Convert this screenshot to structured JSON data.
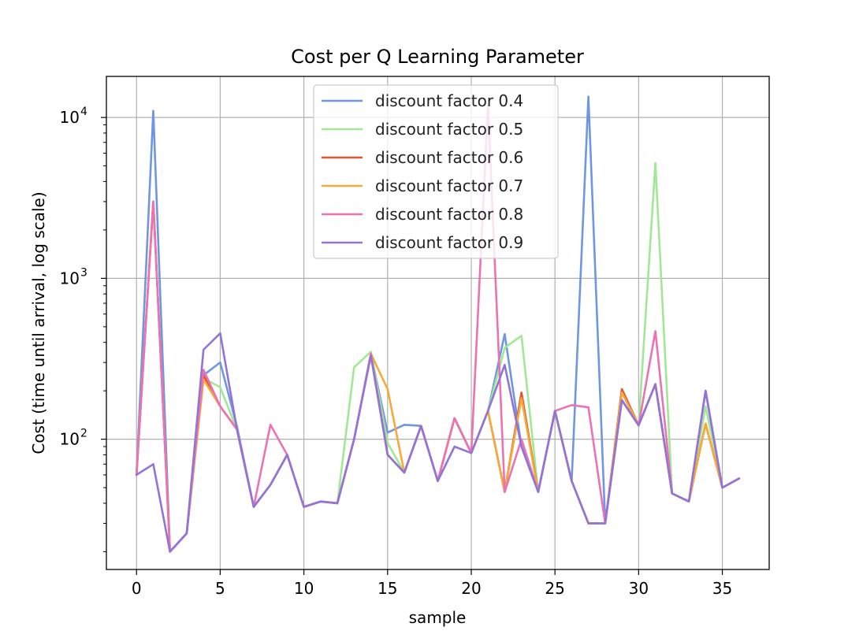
{
  "chart_data": {
    "type": "line",
    "title": "Cost per Q Learning Parameter",
    "xlabel": "sample",
    "ylabel": "Cost (time until arrival, log scale)",
    "yscale": "log",
    "xlim": [
      -1.8,
      37.8
    ],
    "ylim": [
      15.5,
      18000
    ],
    "xticks": [
      0,
      5,
      10,
      15,
      20,
      25,
      30,
      35
    ],
    "yticks": [
      {
        "value": 100,
        "base": "10",
        "exp": "2"
      },
      {
        "value": 1000,
        "base": "10",
        "exp": "3"
      },
      {
        "value": 10000,
        "base": "10",
        "exp": "4"
      }
    ],
    "grid": true,
    "legend_position": "upper center",
    "x": [
      0,
      1,
      2,
      3,
      4,
      5,
      6,
      7,
      8,
      9,
      10,
      11,
      12,
      13,
      14,
      15,
      16,
      17,
      18,
      19,
      20,
      21,
      22,
      23,
      24,
      25,
      26,
      27,
      28,
      29,
      30,
      31,
      32,
      33,
      34,
      35,
      36
    ],
    "series": [
      {
        "name": "discount factor 0.4",
        "color": "#6f96e6",
        "values": [
          60,
          11000,
          20,
          26,
          250,
          300,
          120,
          38,
          52,
          80,
          38,
          41,
          40,
          100,
          340,
          110,
          123,
          121,
          55,
          135,
          82,
          150,
          450,
          90,
          47,
          150,
          55,
          13500,
          30,
          175,
          122,
          220,
          46,
          41,
          200,
          50,
          57
        ]
      },
      {
        "name": "discount factor 0.5",
        "color": "#a0e896",
        "values": [
          60,
          3000,
          20,
          26,
          240,
          210,
          115,
          38,
          52,
          80,
          38,
          41,
          40,
          280,
          350,
          95,
          62,
          121,
          55,
          135,
          82,
          150,
          370,
          440,
          47,
          150,
          55,
          30,
          30,
          175,
          122,
          5200,
          46,
          41,
          160,
          50,
          57
        ]
      },
      {
        "name": "discount factor 0.6",
        "color": "#e5552c",
        "values": [
          60,
          3000,
          20,
          26,
          250,
          160,
          115,
          38,
          52,
          80,
          38,
          41,
          40,
          100,
          340,
          80,
          62,
          121,
          55,
          135,
          82,
          150,
          47,
          195,
          47,
          150,
          55,
          30,
          30,
          205,
          122,
          220,
          46,
          41,
          125,
          50,
          57
        ]
      },
      {
        "name": "discount factor 0.7",
        "color": "#f5a93a",
        "values": [
          60,
          3000,
          20,
          26,
          235,
          160,
          115,
          38,
          52,
          80,
          38,
          41,
          40,
          100,
          340,
          205,
          62,
          121,
          55,
          135,
          82,
          150,
          47,
          180,
          47,
          150,
          55,
          30,
          30,
          195,
          122,
          220,
          46,
          41,
          125,
          50,
          57
        ]
      },
      {
        "name": "discount factor 0.8",
        "color": "#eb72b4",
        "values": [
          60,
          3000,
          20,
          26,
          270,
          160,
          115,
          38,
          123,
          80,
          38,
          41,
          40,
          100,
          340,
          80,
          62,
          121,
          55,
          135,
          82,
          12000,
          47,
          100,
          47,
          150,
          163,
          158,
          30,
          175,
          122,
          470,
          46,
          41,
          200,
          50,
          57
        ]
      },
      {
        "name": "discount factor 0.9",
        "color": "#9274d9",
        "values": [
          60,
          70,
          20,
          26,
          360,
          455,
          115,
          38,
          52,
          80,
          38,
          41,
          40,
          100,
          330,
          80,
          62,
          121,
          55,
          90,
          82,
          150,
          290,
          90,
          47,
          150,
          55,
          30,
          30,
          175,
          122,
          220,
          46,
          41,
          200,
          50,
          57
        ]
      }
    ]
  }
}
